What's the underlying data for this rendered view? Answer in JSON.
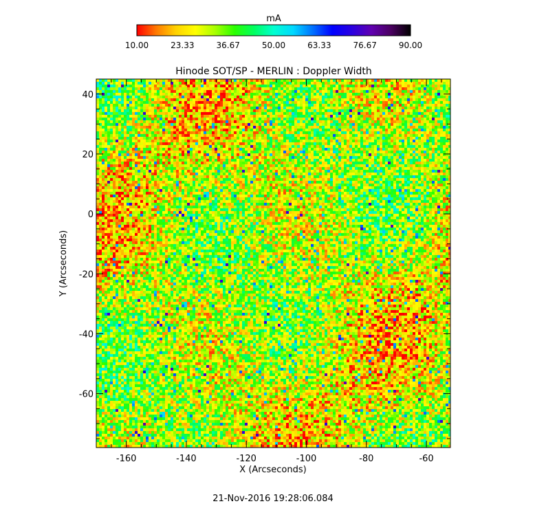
{
  "chart_data": {
    "type": "heatmap",
    "title": "Hinode SOT/SP - MERLIN : Doppler Width",
    "xlabel": "X (Arcseconds)",
    "ylabel": "Y (Arcseconds)",
    "xlim": [
      -170,
      -52
    ],
    "ylim": [
      -78,
      45
    ],
    "xticks": [
      -160,
      -140,
      -120,
      -100,
      -80,
      -60
    ],
    "yticks": [
      40,
      20,
      0,
      -20,
      -40,
      -60
    ],
    "colorbar": {
      "label": "mA",
      "range": [
        10.0,
        90.0
      ],
      "ticks": [
        "10.00",
        "23.33",
        "36.67",
        "50.00",
        "63.33",
        "76.67",
        "90.00"
      ],
      "colormap": [
        "#ff0000",
        "#ff7a00",
        "#ffd200",
        "#ffff00",
        "#a8ff00",
        "#2aff00",
        "#00ff60",
        "#00ffd0",
        "#00d8ff",
        "#0070ff",
        "#0000ff",
        "#2a00e0",
        "#6000b0",
        "#4a0060",
        "#000000"
      ]
    },
    "dominant_values_mA": [
      18,
      42
    ],
    "grid": false
  },
  "footer": {
    "timestamp": "21-Nov-2016 19:28:06.084"
  }
}
